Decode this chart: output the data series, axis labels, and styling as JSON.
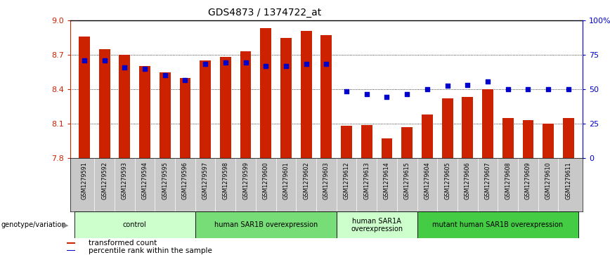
{
  "title": "GDS4873 / 1374722_at",
  "samples": [
    "GSM1279591",
    "GSM1279592",
    "GSM1279593",
    "GSM1279594",
    "GSM1279595",
    "GSM1279596",
    "GSM1279597",
    "GSM1279598",
    "GSM1279599",
    "GSM1279600",
    "GSM1279601",
    "GSM1279602",
    "GSM1279603",
    "GSM1279612",
    "GSM1279613",
    "GSM1279614",
    "GSM1279615",
    "GSM1279604",
    "GSM1279605",
    "GSM1279606",
    "GSM1279607",
    "GSM1279608",
    "GSM1279609",
    "GSM1279610",
    "GSM1279611"
  ],
  "bar_values": [
    8.86,
    8.75,
    8.7,
    8.6,
    8.55,
    8.5,
    8.65,
    8.68,
    8.73,
    8.93,
    8.85,
    8.91,
    8.87,
    8.08,
    8.09,
    7.97,
    8.07,
    8.18,
    8.32,
    8.33,
    8.4,
    8.15,
    8.13,
    8.1,
    8.15
  ],
  "dot_values": [
    8.65,
    8.65,
    8.59,
    8.58,
    8.52,
    8.48,
    8.62,
    8.63,
    8.63,
    8.6,
    8.6,
    8.62,
    8.62,
    8.38,
    8.36,
    8.33,
    8.36,
    8.4,
    8.43,
    8.44,
    8.47,
    8.4,
    8.4,
    8.4,
    8.4
  ],
  "ylim_left": [
    7.8,
    9.0
  ],
  "ylim_right": [
    0,
    100
  ],
  "yticks_left": [
    7.8,
    8.1,
    8.4,
    8.7,
    9.0
  ],
  "yticks_right": [
    0,
    25,
    50,
    75,
    100
  ],
  "ytick_labels_right": [
    "0",
    "25",
    "50",
    "75",
    "100%"
  ],
  "bar_color": "#CC2200",
  "dot_color": "#0000CC",
  "bar_base": 7.8,
  "groups": [
    {
      "label": "control",
      "start": 0,
      "end": 6,
      "color": "#CCFFCC"
    },
    {
      "label": "human SAR1B overexpression",
      "start": 6,
      "end": 13,
      "color": "#77DD77"
    },
    {
      "label": "human SAR1A\noverexpression",
      "start": 13,
      "end": 17,
      "color": "#CCFFCC"
    },
    {
      "label": "mutant human SAR1B overexpression",
      "start": 17,
      "end": 25,
      "color": "#44CC44"
    }
  ],
  "xlabel_left": "genotype/variation",
  "legend_items": [
    {
      "label": "transformed count",
      "color": "#CC2200"
    },
    {
      "label": "percentile rank within the sample",
      "color": "#0000CC"
    }
  ],
  "tick_area_color": "#C8C8C8",
  "figsize": [
    8.68,
    3.63
  ],
  "dpi": 100
}
